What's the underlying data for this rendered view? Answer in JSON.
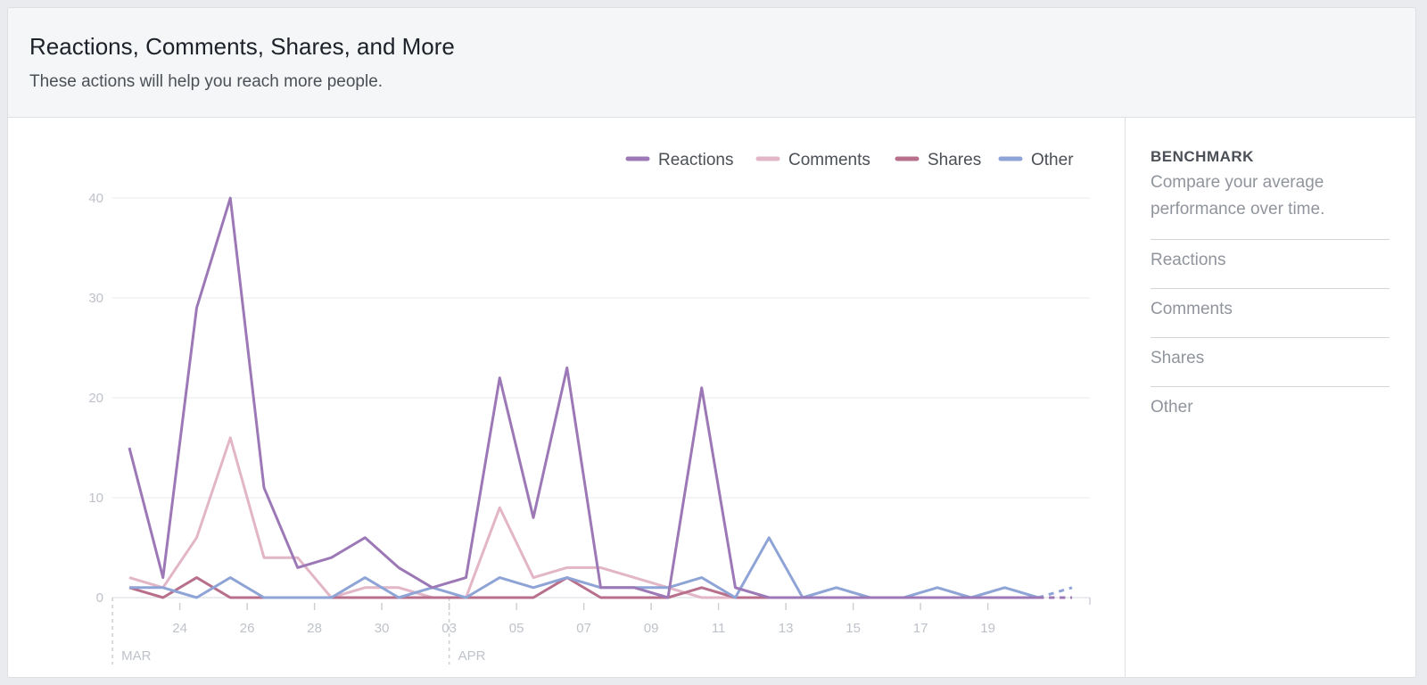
{
  "header": {
    "title": "Reactions, Comments, Shares, and More",
    "subtitle": "These actions will help you reach more people."
  },
  "sidebar": {
    "title": "BENCHMARK",
    "description": "Compare your average performance over time.",
    "items": [
      {
        "label": "Reactions"
      },
      {
        "label": "Comments"
      },
      {
        "label": "Shares"
      },
      {
        "label": "Other"
      }
    ]
  },
  "chart_data": {
    "type": "line",
    "title": "",
    "xlabel": "",
    "ylabel": "",
    "ylim": [
      0,
      40
    ],
    "yticks": [
      "0",
      "10",
      "20",
      "30",
      "40"
    ],
    "grid": true,
    "legend_position": "top-right",
    "x": [
      "Mar 22",
      "Mar 23",
      "Mar 24",
      "Mar 25",
      "Mar 26",
      "Mar 27",
      "Mar 28",
      "Mar 29",
      "Mar 30",
      "Mar 31",
      "Apr 01",
      "Apr 02",
      "Apr 03",
      "Apr 04",
      "Apr 05",
      "Apr 06",
      "Apr 07",
      "Apr 08",
      "Apr 09",
      "Apr 10",
      "Apr 11",
      "Apr 12",
      "Apr 13",
      "Apr 14",
      "Apr 15",
      "Apr 16",
      "Apr 17",
      "Apr 18",
      "Apr 19"
    ],
    "xtick_labels": [
      "24",
      "26",
      "28",
      "30",
      "03",
      "05",
      "07",
      "09",
      "11",
      "13",
      "15",
      "17",
      "19"
    ],
    "month_labels": [
      "MAR",
      "APR"
    ],
    "last_segment_dashed": true,
    "series": [
      {
        "name": "Reactions",
        "color": "#9c79b6",
        "values": [
          15,
          2,
          29,
          40,
          11,
          3,
          4,
          6,
          3,
          1,
          2,
          22,
          8,
          23,
          1,
          1,
          0,
          21,
          1,
          0,
          0,
          0,
          0,
          0,
          0,
          0,
          0,
          0,
          0
        ]
      },
      {
        "name": "Comments",
        "color": "#e2b6c7",
        "values": [
          2,
          1,
          6,
          16,
          4,
          4,
          0,
          1,
          1,
          0,
          0,
          9,
          2,
          3,
          3,
          2,
          1,
          0,
          0,
          0,
          0,
          0,
          0,
          0,
          0,
          0,
          0,
          0,
          0
        ]
      },
      {
        "name": "Shares",
        "color": "#b86f8b",
        "values": [
          1,
          0,
          2,
          0,
          0,
          0,
          0,
          0,
          0,
          0,
          0,
          0,
          0,
          2,
          0,
          0,
          0,
          1,
          0,
          0,
          0,
          0,
          0,
          0,
          0,
          0,
          0,
          0,
          0
        ]
      },
      {
        "name": "Other",
        "color": "#8fa4d6",
        "values": [
          1,
          1,
          0,
          2,
          0,
          0,
          0,
          2,
          0,
          1,
          0,
          2,
          1,
          2,
          1,
          1,
          1,
          2,
          0,
          6,
          0,
          1,
          0,
          0,
          1,
          0,
          1,
          0,
          1
        ]
      }
    ]
  }
}
